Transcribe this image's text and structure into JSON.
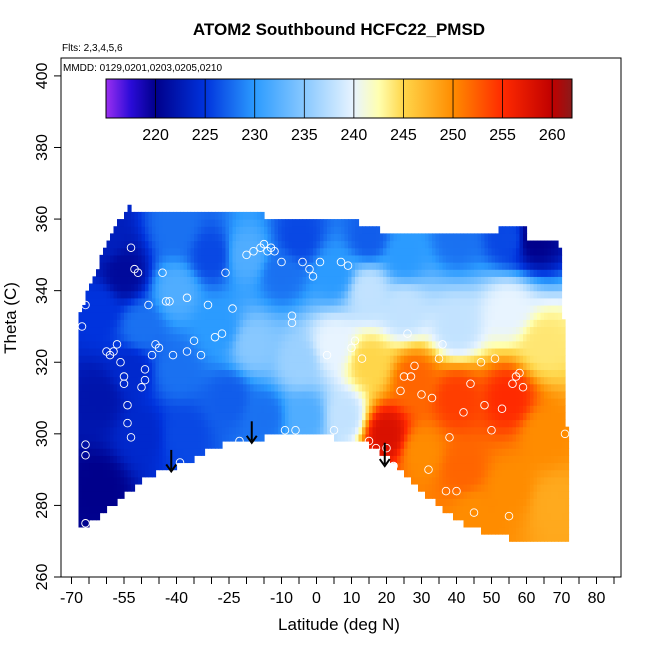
{
  "chart_data": {
    "type": "heatmap",
    "title": "ATOM2 Southbound HCFC22_PMSD",
    "subtitle_flights": "Flts: 2,3,4,5,6",
    "subtitle_dates": "MMDD: 0129,0201,0203,0205,0210",
    "xlabel": "Latitude (deg N)",
    "ylabel": "Theta (C)",
    "xlim": [
      -73,
      87
    ],
    "ylim": [
      260,
      405
    ],
    "x_ticks": [
      -70,
      -65,
      -60,
      -55,
      -50,
      -45,
      -40,
      -35,
      -30,
      -25,
      -20,
      -15,
      -10,
      -5,
      0,
      5,
      10,
      15,
      20,
      25,
      30,
      35,
      40,
      45,
      50,
      55,
      60,
      65,
      70,
      75,
      80,
      85
    ],
    "x_tick_labels": [
      "-70",
      "-55",
      "-40",
      "-25",
      "-10",
      "0",
      "10",
      "20",
      "30",
      "40",
      "50",
      "60",
      "70",
      "80"
    ],
    "y_ticks": [
      260,
      280,
      300,
      320,
      340,
      360,
      380,
      400
    ],
    "y_tick_labels": [
      "260",
      "280",
      "300",
      "320",
      "340",
      "360",
      "380",
      "400"
    ],
    "colorbar": {
      "range": [
        215,
        262
      ],
      "ticks": [
        220,
        225,
        230,
        235,
        240,
        245,
        250,
        255,
        260
      ],
      "tick_labels": [
        "220",
        "225",
        "230",
        "235",
        "240",
        "245",
        "250",
        "255",
        "260"
      ],
      "stops": [
        {
          "v": 215,
          "color": "#9b2ff0"
        },
        {
          "v": 217.5,
          "color": "#2a0bd8"
        },
        {
          "v": 220,
          "color": "#00008b"
        },
        {
          "v": 225,
          "color": "#0033dd"
        },
        {
          "v": 230,
          "color": "#2b9bff"
        },
        {
          "v": 235,
          "color": "#88c8ff"
        },
        {
          "v": 240,
          "color": "#e8f4ff"
        },
        {
          "v": 242.5,
          "color": "#ffffb0"
        },
        {
          "v": 245,
          "color": "#ffd64a"
        },
        {
          "v": 250,
          "color": "#ff8c00"
        },
        {
          "v": 255,
          "color": "#ff2a00"
        },
        {
          "v": 260,
          "color": "#c00000"
        },
        {
          "v": 262,
          "color": "#8b1a1a"
        }
      ]
    },
    "field_anchors": [
      {
        "lat": -60,
        "theta": 355,
        "value": 223
      },
      {
        "lat": -62,
        "theta": 335,
        "value": 225
      },
      {
        "lat": -62,
        "theta": 310,
        "value": 222
      },
      {
        "lat": -62,
        "theta": 285,
        "value": 220
      },
      {
        "lat": -55,
        "theta": 345,
        "value": 221
      },
      {
        "lat": -53,
        "theta": 318,
        "value": 224
      },
      {
        "lat": -50,
        "theta": 300,
        "value": 224
      },
      {
        "lat": -50,
        "theta": 330,
        "value": 228
      },
      {
        "lat": -40,
        "theta": 358,
        "value": 228
      },
      {
        "lat": -40,
        "theta": 340,
        "value": 232
      },
      {
        "lat": -40,
        "theta": 318,
        "value": 228
      },
      {
        "lat": -38,
        "theta": 300,
        "value": 226
      },
      {
        "lat": -30,
        "theta": 350,
        "value": 226
      },
      {
        "lat": -28,
        "theta": 330,
        "value": 230
      },
      {
        "lat": -25,
        "theta": 310,
        "value": 227
      },
      {
        "lat": -20,
        "theta": 350,
        "value": 232
      },
      {
        "lat": -18,
        "theta": 325,
        "value": 235
      },
      {
        "lat": -15,
        "theta": 305,
        "value": 228
      },
      {
        "lat": -10,
        "theta": 345,
        "value": 228
      },
      {
        "lat": -5,
        "theta": 355,
        "value": 226
      },
      {
        "lat": -5,
        "theta": 320,
        "value": 236
      },
      {
        "lat": -3,
        "theta": 305,
        "value": 232
      },
      {
        "lat": 5,
        "theta": 345,
        "value": 230
      },
      {
        "lat": 5,
        "theta": 325,
        "value": 240
      },
      {
        "lat": 8,
        "theta": 305,
        "value": 238
      },
      {
        "lat": 15,
        "theta": 355,
        "value": 227
      },
      {
        "lat": 15,
        "theta": 340,
        "value": 238
      },
      {
        "lat": 15,
        "theta": 320,
        "value": 245
      },
      {
        "lat": 20,
        "theta": 300,
        "value": 258
      },
      {
        "lat": 25,
        "theta": 350,
        "value": 230
      },
      {
        "lat": 25,
        "theta": 335,
        "value": 238
      },
      {
        "lat": 28,
        "theta": 315,
        "value": 252
      },
      {
        "lat": 30,
        "theta": 295,
        "value": 250
      },
      {
        "lat": 40,
        "theta": 355,
        "value": 228
      },
      {
        "lat": 40,
        "theta": 330,
        "value": 238
      },
      {
        "lat": 40,
        "theta": 310,
        "value": 254
      },
      {
        "lat": 42,
        "theta": 290,
        "value": 252
      },
      {
        "lat": 45,
        "theta": 278,
        "value": 250
      },
      {
        "lat": 55,
        "theta": 355,
        "value": 226
      },
      {
        "lat": 55,
        "theta": 335,
        "value": 240
      },
      {
        "lat": 55,
        "theta": 310,
        "value": 255
      },
      {
        "lat": 55,
        "theta": 285,
        "value": 250
      },
      {
        "lat": 62,
        "theta": 355,
        "value": 220
      },
      {
        "lat": 65,
        "theta": 325,
        "value": 244
      },
      {
        "lat": 65,
        "theta": 300,
        "value": 250
      },
      {
        "lat": 68,
        "theta": 280,
        "value": 248
      }
    ],
    "top_boundary": [
      [
        -68,
        332
      ],
      [
        -66,
        338
      ],
      [
        -64,
        343
      ],
      [
        -62,
        348
      ],
      [
        -60,
        352
      ],
      [
        -58,
        356
      ],
      [
        -56,
        360
      ],
      [
        -54,
        363
      ],
      [
        -53,
        364
      ],
      [
        -53,
        362
      ],
      [
        -15,
        362
      ],
      [
        -15,
        360
      ],
      [
        12,
        360
      ],
      [
        12,
        358
      ],
      [
        18,
        358
      ],
      [
        18,
        355
      ],
      [
        52,
        355
      ],
      [
        52,
        357
      ],
      [
        60,
        357
      ],
      [
        60,
        354
      ],
      [
        68,
        354
      ],
      [
        70,
        352
      ],
      [
        70,
        332
      ],
      [
        71,
        330
      ],
      [
        71,
        303
      ],
      [
        72,
        300
      ],
      [
        72,
        270
      ]
    ],
    "bottom_boundary": [
      [
        -68,
        273
      ],
      [
        -62,
        277
      ],
      [
        -56,
        282
      ],
      [
        -50,
        287
      ],
      [
        -44,
        290
      ],
      [
        -40,
        291
      ],
      [
        -35,
        293
      ],
      [
        -30,
        296
      ],
      [
        -25,
        298
      ],
      [
        -20,
        298
      ],
      [
        -15,
        299
      ],
      [
        -10,
        300
      ],
      [
        -5,
        301
      ],
      [
        0,
        300
      ],
      [
        5,
        299
      ],
      [
        10,
        298
      ],
      [
        15,
        297
      ],
      [
        20,
        294
      ],
      [
        25,
        289
      ],
      [
        30,
        284
      ],
      [
        35,
        280
      ],
      [
        40,
        276
      ],
      [
        45,
        274
      ],
      [
        50,
        272
      ],
      [
        55,
        271
      ],
      [
        60,
        270
      ],
      [
        65,
        270
      ],
      [
        70,
        270
      ],
      [
        72,
        270
      ]
    ],
    "flight_points": [
      {
        "lat": -67,
        "theta": 330
      },
      {
        "lat": -66,
        "theta": 336
      },
      {
        "lat": -66,
        "theta": 297
      },
      {
        "lat": -66,
        "theta": 294
      },
      {
        "lat": -66,
        "theta": 275
      },
      {
        "lat": -60,
        "theta": 323
      },
      {
        "lat": -59,
        "theta": 322
      },
      {
        "lat": -58,
        "theta": 323
      },
      {
        "lat": -57,
        "theta": 325
      },
      {
        "lat": -56,
        "theta": 320
      },
      {
        "lat": -55,
        "theta": 316
      },
      {
        "lat": -55,
        "theta": 314
      },
      {
        "lat": -54,
        "theta": 308
      },
      {
        "lat": -54,
        "theta": 303
      },
      {
        "lat": -53,
        "theta": 299
      },
      {
        "lat": -53,
        "theta": 352
      },
      {
        "lat": -52,
        "theta": 346
      },
      {
        "lat": -51,
        "theta": 345
      },
      {
        "lat": -50,
        "theta": 313
      },
      {
        "lat": -49,
        "theta": 318
      },
      {
        "lat": -49,
        "theta": 315
      },
      {
        "lat": -48,
        "theta": 336
      },
      {
        "lat": -47,
        "theta": 322
      },
      {
        "lat": -46,
        "theta": 325
      },
      {
        "lat": -45,
        "theta": 324
      },
      {
        "lat": -44,
        "theta": 345
      },
      {
        "lat": -43,
        "theta": 337
      },
      {
        "lat": -42,
        "theta": 337
      },
      {
        "lat": -41,
        "theta": 322
      },
      {
        "lat": -39,
        "theta": 292
      },
      {
        "lat": -37,
        "theta": 338
      },
      {
        "lat": -37,
        "theta": 323
      },
      {
        "lat": -35,
        "theta": 326
      },
      {
        "lat": -33,
        "theta": 322
      },
      {
        "lat": -31,
        "theta": 336
      },
      {
        "lat": -29,
        "theta": 327
      },
      {
        "lat": -27,
        "theta": 328
      },
      {
        "lat": -26,
        "theta": 345
      },
      {
        "lat": -24,
        "theta": 335
      },
      {
        "lat": -22,
        "theta": 298
      },
      {
        "lat": -20,
        "theta": 350
      },
      {
        "lat": -18,
        "theta": 351
      },
      {
        "lat": -16,
        "theta": 352
      },
      {
        "lat": -15,
        "theta": 353
      },
      {
        "lat": -14,
        "theta": 351
      },
      {
        "lat": -13,
        "theta": 352
      },
      {
        "lat": -12,
        "theta": 351
      },
      {
        "lat": -10,
        "theta": 348
      },
      {
        "lat": -9,
        "theta": 301
      },
      {
        "lat": -7,
        "theta": 333
      },
      {
        "lat": -7,
        "theta": 331
      },
      {
        "lat": -6,
        "theta": 301
      },
      {
        "lat": -4,
        "theta": 348
      },
      {
        "lat": -2,
        "theta": 346
      },
      {
        "lat": -1,
        "theta": 344
      },
      {
        "lat": 1,
        "theta": 348
      },
      {
        "lat": 3,
        "theta": 322
      },
      {
        "lat": 5,
        "theta": 301
      },
      {
        "lat": 7,
        "theta": 348
      },
      {
        "lat": 9,
        "theta": 347
      },
      {
        "lat": 10,
        "theta": 324
      },
      {
        "lat": 11,
        "theta": 326
      },
      {
        "lat": 13,
        "theta": 321
      },
      {
        "lat": 15,
        "theta": 298
      },
      {
        "lat": 17,
        "theta": 296
      },
      {
        "lat": 20,
        "theta": 296
      },
      {
        "lat": 22,
        "theta": 291
      },
      {
        "lat": 24,
        "theta": 312
      },
      {
        "lat": 25,
        "theta": 316
      },
      {
        "lat": 26,
        "theta": 328
      },
      {
        "lat": 27,
        "theta": 316
      },
      {
        "lat": 28,
        "theta": 319
      },
      {
        "lat": 30,
        "theta": 311
      },
      {
        "lat": 32,
        "theta": 290
      },
      {
        "lat": 33,
        "theta": 310
      },
      {
        "lat": 35,
        "theta": 321
      },
      {
        "lat": 36,
        "theta": 325
      },
      {
        "lat": 37,
        "theta": 284
      },
      {
        "lat": 38,
        "theta": 299
      },
      {
        "lat": 40,
        "theta": 284
      },
      {
        "lat": 42,
        "theta": 306
      },
      {
        "lat": 44,
        "theta": 314
      },
      {
        "lat": 45,
        "theta": 278
      },
      {
        "lat": 47,
        "theta": 320
      },
      {
        "lat": 48,
        "theta": 308
      },
      {
        "lat": 50,
        "theta": 301
      },
      {
        "lat": 51,
        "theta": 321
      },
      {
        "lat": 53,
        "theta": 307
      },
      {
        "lat": 55,
        "theta": 277
      },
      {
        "lat": 56,
        "theta": 314
      },
      {
        "lat": 57,
        "theta": 316
      },
      {
        "lat": 58,
        "theta": 317
      },
      {
        "lat": 59,
        "theta": 313
      },
      {
        "lat": 65,
        "theta": 356
      },
      {
        "lat": 71,
        "theta": 300
      }
    ],
    "arrows": [
      {
        "lat": -41.5,
        "theta_top": 295.5,
        "theta_tip": 289.5
      },
      {
        "lat": -18.5,
        "theta_top": 303.5,
        "theta_tip": 297.5
      },
      {
        "lat": 19.5,
        "theta_top": 297.5,
        "theta_tip": 291.0
      }
    ],
    "grid": false,
    "legend_position": "top"
  }
}
